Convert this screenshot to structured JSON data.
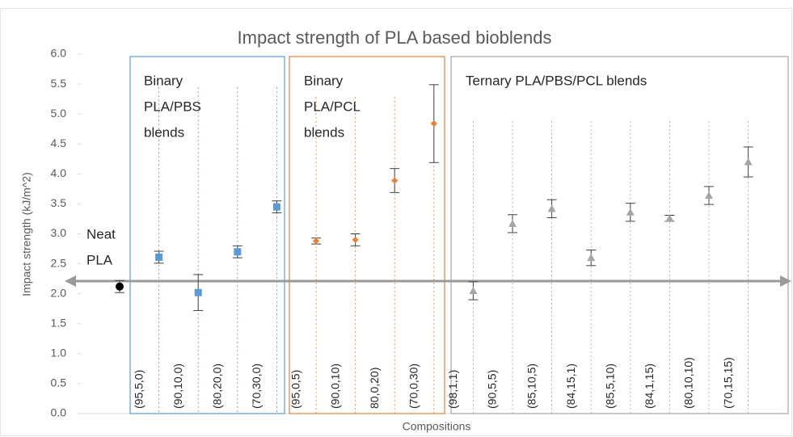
{
  "chart_data": {
    "type": "errorbar",
    "title": "Impact strength of PLA based bioblends",
    "xlabel": "Compositions",
    "ylabel": "Impact strength (kJ/m^2)",
    "categories": [
      null,
      "(95,5,0)",
      "(90,10,0)",
      "(80,20,0)",
      "(70,30,0)",
      "(95,0,5)",
      "(90,0,10)",
      "80,0,20)",
      "(70,0,30)",
      "(98,1,1)",
      "(90,5,5)",
      "(85,10,5)",
      "(84,15,1)",
      "(85,5,10)",
      "(84,1,15)",
      "(80,10,10)",
      "(70,15,15)"
    ],
    "ylim": [
      0,
      6
    ],
    "yticks": [
      {
        "value": 0,
        "label": "0.0"
      },
      0.5,
      {
        "value": 1,
        "label": "1.0"
      },
      1.5,
      {
        "value": 2,
        "label": "2.0"
      },
      2.5,
      {
        "value": 3,
        "label": "3.0"
      },
      3.5,
      {
        "value": 4,
        "label": "4.0"
      },
      4.5,
      {
        "value": 5,
        "label": "5.0"
      },
      5.5,
      {
        "value": 6,
        "label": "6.0"
      }
    ],
    "series": [
      {
        "label_lines": [
          "Neat",
          "PLA"
        ],
        "color": "#000000",
        "marker": "circle",
        "values": [
          2.12,
          null,
          null,
          null,
          null,
          null,
          null,
          null,
          null,
          null,
          null,
          null,
          null,
          null,
          null,
          null,
          null
        ],
        "errors": [
          0.1,
          null,
          null,
          null,
          null,
          null,
          null,
          null,
          null,
          null,
          null,
          null,
          null,
          null,
          null,
          null,
          null
        ]
      },
      {
        "label_lines": [
          "Binary",
          "PLA/PBS",
          "blends"
        ],
        "color": "#5b9bd5",
        "marker": "square",
        "values": [
          null,
          2.61,
          2.02,
          2.7,
          3.45,
          null,
          null,
          null,
          null,
          null,
          null,
          null,
          null,
          null,
          null,
          null,
          null
        ],
        "errors": [
          null,
          0.1,
          0.3,
          0.1,
          0.1,
          null,
          null,
          null,
          null,
          null,
          null,
          null,
          null,
          null,
          null,
          null,
          null
        ]
      },
      {
        "label_lines": [
          "Binary",
          "PLA/PCL",
          "blends"
        ],
        "color": "#ed7d31",
        "marker": "diamond",
        "values": [
          null,
          null,
          null,
          null,
          null,
          2.88,
          2.9,
          3.89,
          4.84,
          null,
          null,
          null,
          null,
          null,
          null,
          null,
          null
        ],
        "errors": [
          null,
          null,
          null,
          null,
          null,
          0.05,
          0.1,
          0.2,
          0.65,
          null,
          null,
          null,
          null,
          null,
          null,
          null,
          null
        ]
      },
      {
        "label_lines": [
          "Ternary PLA/PBS/PCL blends"
        ],
        "color": "#a5a5a5",
        "marker": "triangle",
        "values": [
          null,
          null,
          null,
          null,
          null,
          null,
          null,
          null,
          null,
          2.05,
          3.17,
          3.42,
          2.6,
          3.36,
          3.26,
          3.64,
          4.2
        ],
        "errors": [
          null,
          null,
          null,
          null,
          null,
          null,
          null,
          null,
          null,
          0.15,
          0.15,
          0.15,
          0.13,
          0.15,
          0.05,
          0.15,
          0.25
        ]
      }
    ]
  }
}
